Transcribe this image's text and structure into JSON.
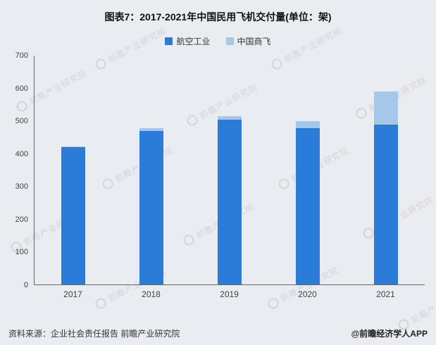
{
  "title": "图表7：2017-2021年中国民用飞机交付量(单位：架)",
  "legend": [
    {
      "label": "航空工业",
      "color": "#2b7cd9"
    },
    {
      "label": "中国商飞",
      "color": "#a5c8ea"
    }
  ],
  "chart_data": {
    "type": "bar",
    "stacked": true,
    "title": "图表7：2017-2021年中国民用飞机交付量(单位：架)",
    "categories": [
      "2017",
      "2018",
      "2019",
      "2020",
      "2021"
    ],
    "series": [
      {
        "name": "航空工业",
        "color": "#2b7cd9",
        "values": [
          420,
          470,
          505,
          478,
          490
        ]
      },
      {
        "name": "中国商飞",
        "color": "#a5c8ea",
        "values": [
          2,
          8,
          10,
          22,
          100
        ]
      }
    ],
    "totals": [
      422,
      478,
      515,
      500,
      590
    ],
    "ylim": [
      0,
      700
    ],
    "yticks": [
      0,
      100,
      200,
      300,
      400,
      500,
      600,
      700
    ],
    "legend_position": "top",
    "grid": false
  },
  "footer": {
    "source": "资料来源：企业社会责任报告 前瞻产业研究院",
    "credit": "@前瞻经济学人APP"
  },
  "watermark": "前瞻产业研究院"
}
